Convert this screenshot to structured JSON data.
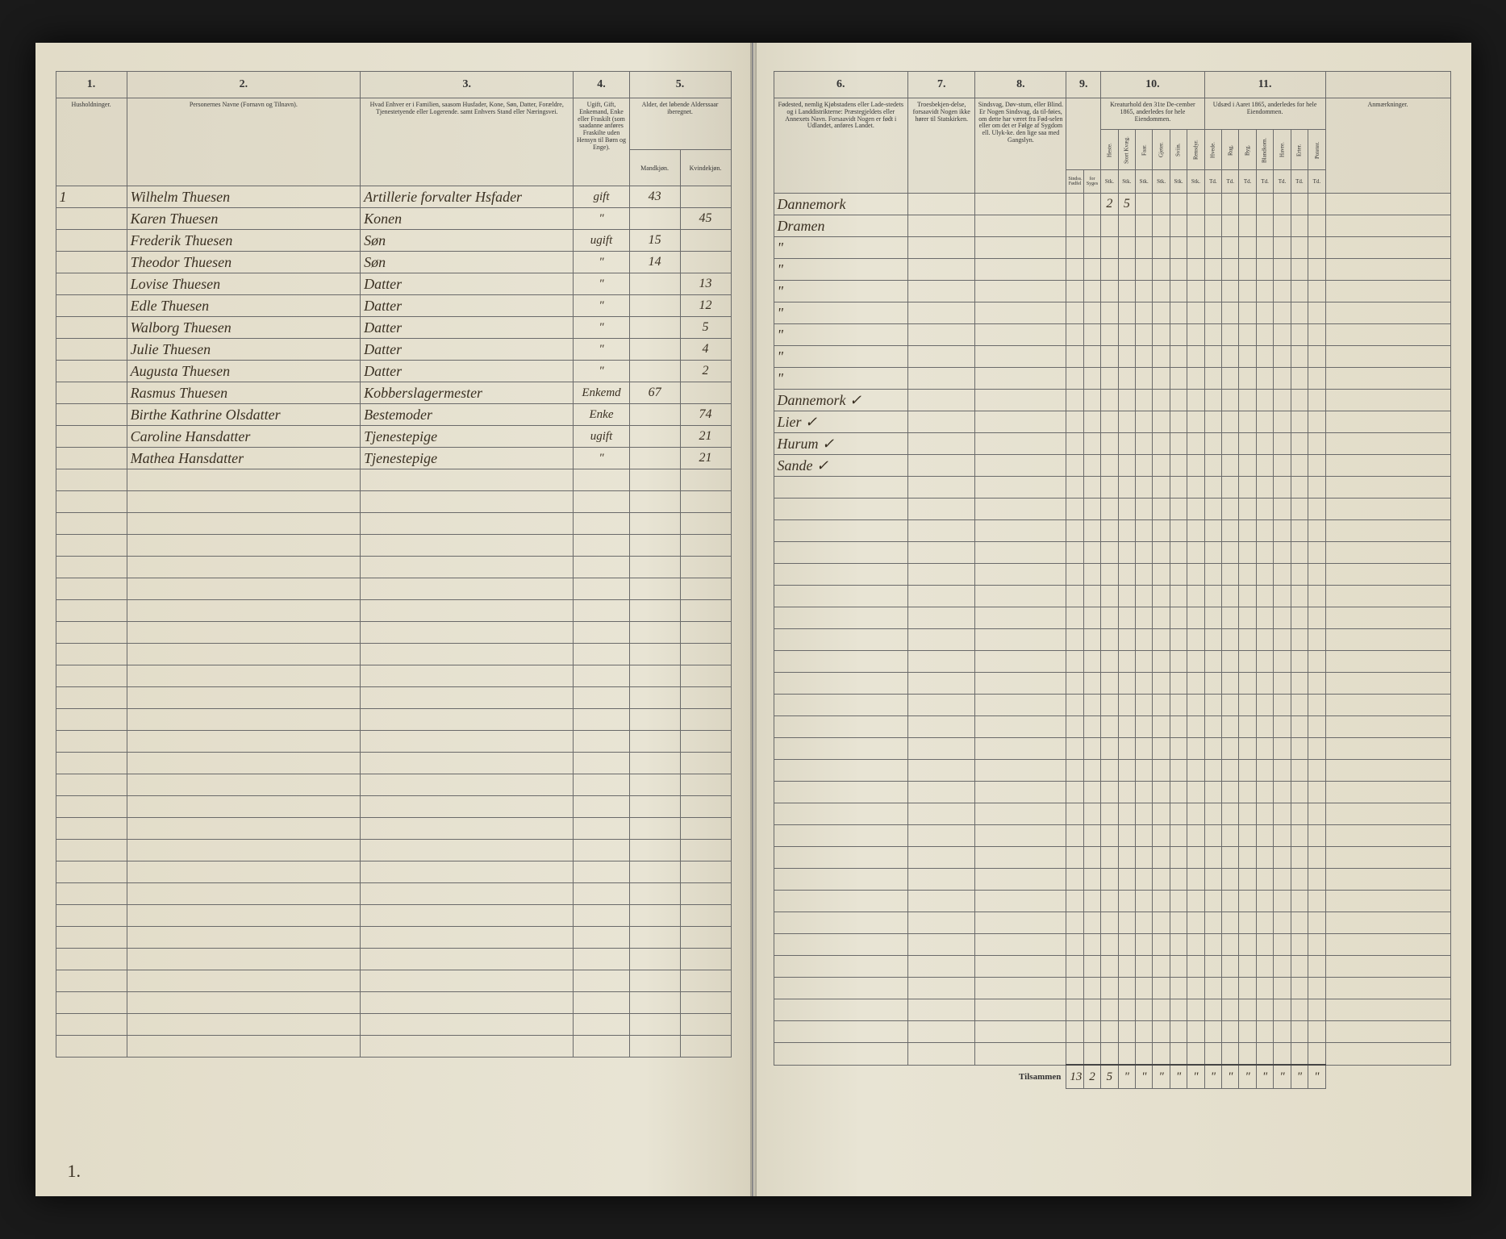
{
  "document": {
    "type": "census-ledger",
    "background": "#e8e4d4",
    "line_color": "#6a6a6a",
    "ink_color": "#3a3022",
    "total_rows": 40
  },
  "left_page": {
    "col_numbers": [
      "1.",
      "2.",
      "3.",
      "4.",
      "5."
    ],
    "headers": {
      "c1": "Husholdninger.",
      "c2": "Personernes Navne (Fornavn og Tilnavn).",
      "c3": "Hvad Enhver er i Familien, saasom Husfader, Kone, Søn, Datter, Forældre, Tjenestetyende eller Logerende. samt Enhvers Stand eller Næringsvei.",
      "c4": "Ugift, Gift, Enkemand, Enke eller Fraskilt (som saadanne anføres Fraskilte uden Hensyn til Børn og Enge).",
      "c5": "Alder, det løbende Alderssaar iberegnet.",
      "c5a": "Mandkjøn.",
      "c5b": "Kvindekjøn."
    },
    "col_widths": {
      "c1": 70,
      "c2": 230,
      "c3": 210,
      "c4": 55,
      "c5a": 50,
      "c5b": 50
    },
    "entries": [
      {
        "num": "1",
        "name": "Wilhelm Thuesen",
        "relation": "Artillerie forvalter Hsfader",
        "status": "gift",
        "age_m": "43",
        "age_f": ""
      },
      {
        "num": "",
        "name": "Karen Thuesen",
        "relation": "Konen",
        "status": "\"",
        "age_m": "",
        "age_f": "45"
      },
      {
        "num": "",
        "name": "Frederik Thuesen",
        "relation": "Søn",
        "status": "ugift",
        "age_m": "15",
        "age_f": ""
      },
      {
        "num": "",
        "name": "Theodor Thuesen",
        "relation": "Søn",
        "status": "\"",
        "age_m": "14",
        "age_f": ""
      },
      {
        "num": "",
        "name": "Lovise Thuesen",
        "relation": "Datter",
        "status": "\"",
        "age_m": "",
        "age_f": "13"
      },
      {
        "num": "",
        "name": "Edle Thuesen",
        "relation": "Datter",
        "status": "\"",
        "age_m": "",
        "age_f": "12"
      },
      {
        "num": "",
        "name": "Walborg Thuesen",
        "relation": "Datter",
        "status": "\"",
        "age_m": "",
        "age_f": "5"
      },
      {
        "num": "",
        "name": "Julie Thuesen",
        "relation": "Datter",
        "status": "\"",
        "age_m": "",
        "age_f": "4"
      },
      {
        "num": "",
        "name": "Augusta Thuesen",
        "relation": "Datter",
        "status": "\"",
        "age_m": "",
        "age_f": "2"
      },
      {
        "num": "",
        "name": "Rasmus Thuesen",
        "relation": "Kobberslagermester",
        "status": "Enkemd",
        "age_m": "67",
        "age_f": ""
      },
      {
        "num": "",
        "name": "Birthe Kathrine Olsdatter",
        "relation": "Bestemoder",
        "status": "Enke",
        "age_m": "",
        "age_f": "74"
      },
      {
        "num": "",
        "name": "Caroline Hansdatter",
        "relation": "Tjenestepige",
        "status": "ugift",
        "age_m": "",
        "age_f": "21"
      },
      {
        "num": "",
        "name": "Mathea Hansdatter",
        "relation": "Tjenestepige",
        "status": "\"",
        "age_m": "",
        "age_f": "21"
      }
    ],
    "corner_mark": "1."
  },
  "right_page": {
    "col_numbers": [
      "6.",
      "7.",
      "8.",
      "9.",
      "10.",
      "11.",
      ""
    ],
    "headers": {
      "c6": "Fødested, nemlig Kjøbstadens eller Lade-stedets og i Landdistrikterne: Præstegjeldets eller Annexets Navn. Forsaavidt Nogen er født i Udlandet, anføres Landet.",
      "c7": "Troesbekjen-delse, forsaavidt Nogen ikke hører til Statskirken.",
      "c8": "Sindsvag, Døv-stum, eller Blind. Er Nogen Sindsvag, da til-føies, om dette har været fra Fød-selen eller om det er Følge af Sygdom ell. Ulyk-ke. den lige saa med Gangslyn.",
      "c9": "",
      "c10": "Kreaturhold den 31te De-cember 1865, anderledes for hele Eiendommen.",
      "c11": "Udsæd i Aaret 1865, anderledes for hele Eiendommen.",
      "remarks": "Anmærkninger."
    },
    "sub9": [
      "Sindss. Fødfel",
      "for Syges"
    ],
    "sub10": [
      "Heste.",
      "Stort Kvæg.",
      "Faar.",
      "Gjeter.",
      "Sviin.",
      "Rensdyr."
    ],
    "sub11": [
      "Hvede.",
      "Rug.",
      "Byg.",
      "Blandkorn.",
      "Havre.",
      "Erter.",
      "Poteter."
    ],
    "sub_units": [
      "Stk.",
      "Stk.",
      "Stk.",
      "Stk.",
      "Stk.",
      "Stk.",
      "Stk.",
      "Stk.",
      "Td.",
      "Td.",
      "Td.",
      "Td.",
      "Td.",
      "Td.",
      "Td."
    ],
    "col_widths": {
      "c6": 140,
      "c7": 70,
      "c8": 95,
      "narrow": 18,
      "remarks": 130
    },
    "entries": [
      {
        "place": "Dannemork",
        "c10_0": "2",
        "c10_1": "5"
      },
      {
        "place": "Dramen"
      },
      {
        "place": "\""
      },
      {
        "place": "\""
      },
      {
        "place": "\""
      },
      {
        "place": "\""
      },
      {
        "place": "\""
      },
      {
        "place": "\""
      },
      {
        "place": "\""
      },
      {
        "place": "Dannemork ✓"
      },
      {
        "place": "Lier ✓"
      },
      {
        "place": "Hurum ✓"
      },
      {
        "place": "Sande ✓"
      }
    ],
    "footer": {
      "label": "Tilsammen",
      "values": [
        "13",
        "2",
        "5",
        "\"",
        "\"",
        "\"",
        "\"",
        "\"",
        "\"",
        "\"",
        "\"",
        "\"",
        "\"",
        "\"",
        "\""
      ]
    }
  }
}
